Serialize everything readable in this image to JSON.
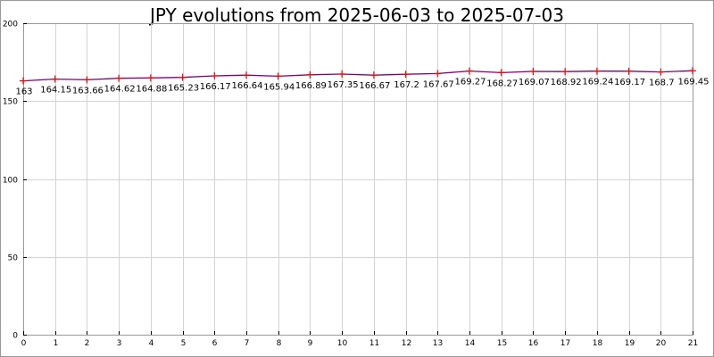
{
  "chart_data": {
    "type": "line",
    "title": "JPY evolutions from 2025-06-03 to 2025-07-03",
    "xlabel": "",
    "ylabel": "",
    "x": [
      0,
      1,
      2,
      3,
      4,
      5,
      6,
      7,
      8,
      9,
      10,
      11,
      12,
      13,
      14,
      15,
      16,
      17,
      18,
      19,
      20,
      21
    ],
    "series": [
      {
        "values": [
          163,
          164.15,
          163.66,
          164.62,
          164.88,
          165.23,
          166.17,
          166.64,
          165.94,
          166.89,
          167.35,
          166.67,
          167.2,
          167.67,
          169.27,
          168.27,
          169.07,
          168.92,
          169.24,
          169.17,
          168.7,
          169.45
        ],
        "line_color": "#800080",
        "marker_color": "#ff0000",
        "marker": "plus"
      }
    ],
    "data_labels": [
      "163",
      "164.15",
      "163.66",
      "164.62",
      "164.88",
      "165.23",
      "166.17",
      "166.64",
      "165.94",
      "166.89",
      "167.35",
      "166.67",
      "167.2",
      "167.67",
      "169.27",
      "168.27",
      "169.07",
      "168.92",
      "169.24",
      "169.17",
      "168.7",
      "169.45"
    ],
    "xlim": [
      0,
      21
    ],
    "ylim": [
      0,
      200
    ],
    "x_ticks": [
      "0",
      "1",
      "2",
      "3",
      "4",
      "5",
      "6",
      "7",
      "8",
      "9",
      "10",
      "11",
      "12",
      "13",
      "14",
      "15",
      "16",
      "17",
      "18",
      "19",
      "20",
      "21"
    ],
    "y_ticks": [
      "0",
      "50",
      "100",
      "150",
      "200"
    ],
    "grid": true,
    "background": "#ffffff",
    "frame_color": "#999999",
    "grid_color": "#d3d3d3"
  }
}
